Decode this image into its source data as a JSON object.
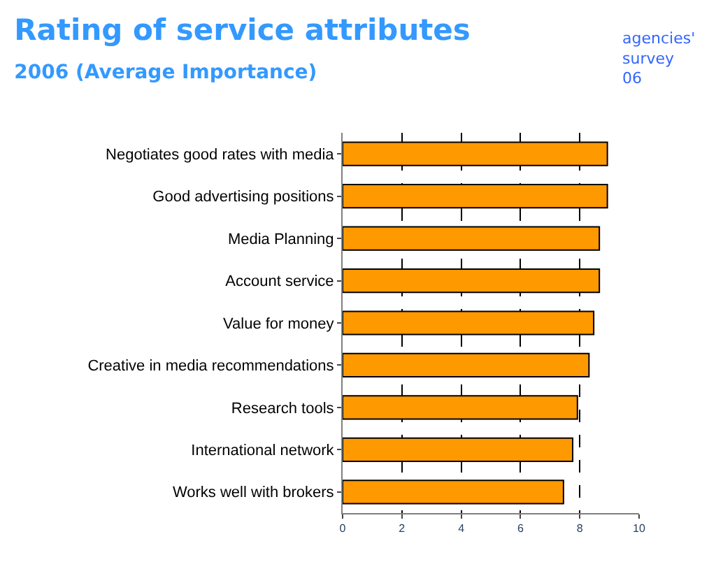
{
  "chart_data": {
    "type": "bar",
    "orientation": "horizontal",
    "title": "Rating of service attributes",
    "subtitle": "2006 (Average Importance)",
    "categories": [
      "Negotiates good rates with media",
      "Good advertising positions",
      "Media Planning",
      "Account service",
      "Value for money",
      "Creative in media recommendations",
      "Research tools",
      "International network",
      "Works well with brokers"
    ],
    "values": [
      8.93,
      8.93,
      8.66,
      8.66,
      8.47,
      8.31,
      7.92,
      7.76,
      7.45
    ],
    "color": "#ff9900",
    "xlim": [
      0,
      10
    ],
    "xticks": [
      0,
      2,
      4,
      6,
      8,
      10
    ],
    "grid": "x",
    "legend": false,
    "annotations": [
      "agencies'\nsurvey\n06"
    ]
  }
}
